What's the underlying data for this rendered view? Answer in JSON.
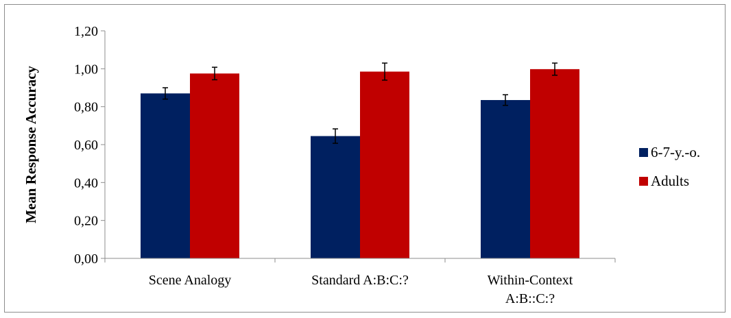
{
  "chart_data": {
    "type": "bar",
    "title": "",
    "xlabel": "",
    "ylabel": "Mean Response Accuracy",
    "ylim": [
      0,
      1.2
    ],
    "yticks": [
      "0,00",
      "0,20",
      "0,40",
      "0,60",
      "0,80",
      "1,00",
      "1,20"
    ],
    "categories": [
      [
        "Scene Analogy"
      ],
      [
        "Standard A:B:C:?"
      ],
      [
        "Within-Context",
        "A:B::C:?"
      ]
    ],
    "series": [
      {
        "name": "6-7-y.-o.",
        "color": "#002060",
        "values": [
          0.87,
          0.645,
          0.835
        ],
        "errors": [
          0.03,
          0.038,
          0.028
        ]
      },
      {
        "name": "Adults",
        "color": "#c00000",
        "values": [
          0.975,
          0.985,
          0.998
        ],
        "errors": [
          0.033,
          0.045,
          0.032
        ]
      }
    ],
    "grid": false,
    "legend_position": "right"
  }
}
